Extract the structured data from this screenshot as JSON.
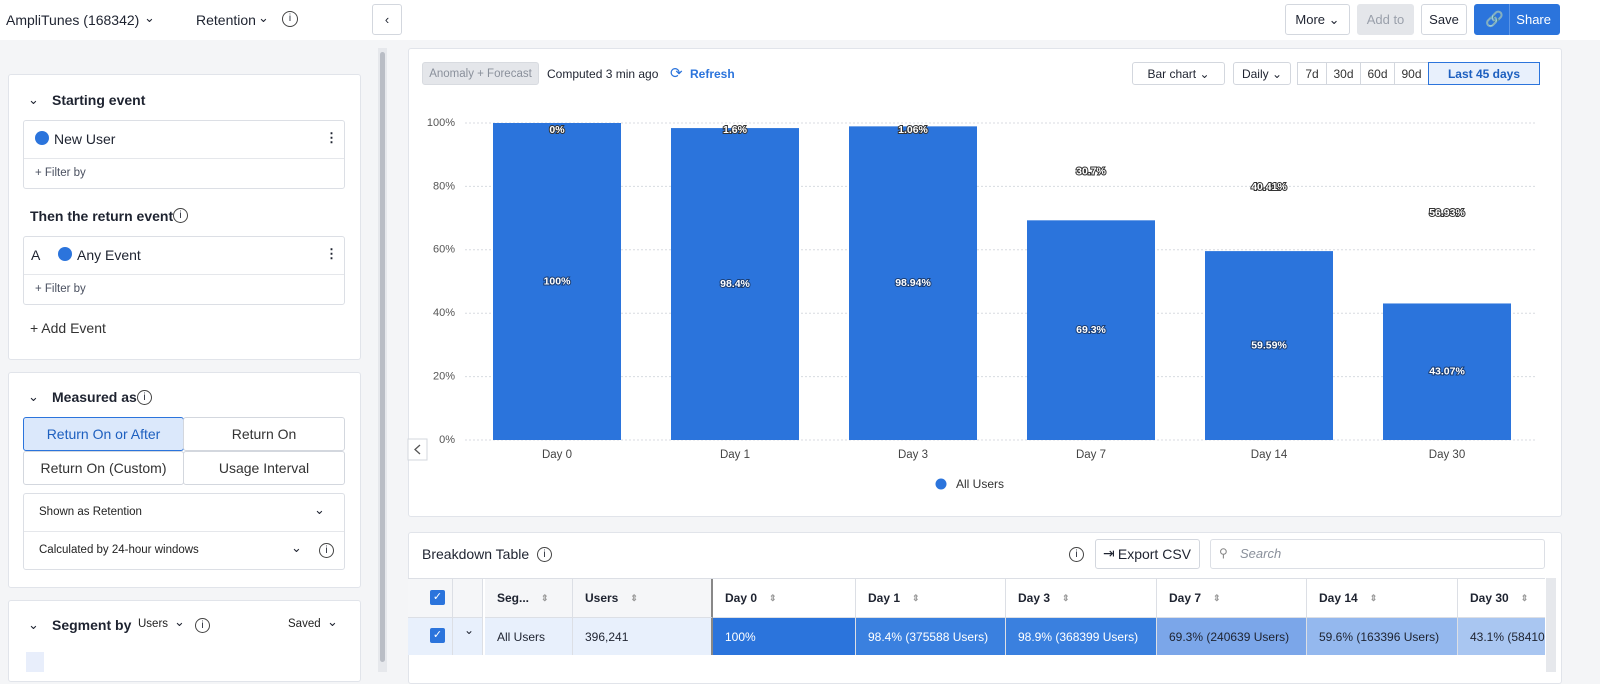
{
  "header": {
    "project": "AmpliTunes (168342)",
    "chart_kind": "Retention",
    "more": "More",
    "add_to": "Add to",
    "save": "Save",
    "share": "Share"
  },
  "sidebar": {
    "starting_event_title": "Starting event",
    "starting_event": "New User",
    "starting_filter": "+ Filter by",
    "return_event_title": "Then the return event",
    "return_letter": "A",
    "return_event": "Any Event",
    "return_filter": "+ Filter by",
    "add_event": "+ Add Event",
    "measured_as_title": "Measured as",
    "measure_options": [
      "Return On or After",
      "Return On",
      "Return On (Custom)",
      "Usage Interval"
    ],
    "shown_as": "Shown as Retention",
    "calculated_by": "Calculated by 24-hour windows",
    "segment_by": "Segment by",
    "segment_target": "Users",
    "saved": "Saved"
  },
  "toolbar": {
    "anomaly": "Anomaly + Forecast",
    "computed": "Computed 3 min ago",
    "refresh": "Refresh",
    "chart_view": "Bar chart",
    "interval": "Daily",
    "ranges": [
      "7d",
      "30d",
      "60d",
      "90d",
      "Last 45 days"
    ]
  },
  "chart_data": {
    "type": "bar",
    "categories": [
      "Day 0",
      "Day 1",
      "Day 3",
      "Day 7",
      "Day 14",
      "Day 30"
    ],
    "series": [
      {
        "name": "All Users",
        "color": "#2b74dc",
        "values": [
          100,
          98.4,
          98.94,
          69.3,
          59.59,
          43.07
        ],
        "value_labels": [
          "100%",
          "98.4%",
          "98.94%",
          "69.3%",
          "59.59%",
          "43.07%"
        ],
        "dropoff_values": [
          0,
          1.6,
          1.06,
          30.7,
          40.41,
          56.93
        ],
        "dropoff_labels": [
          "0%",
          "1.6%",
          "1.06%",
          "30.7%",
          "40.41%",
          "56.93%"
        ]
      }
    ],
    "ylim": [
      0,
      100
    ],
    "yticks": [
      {
        "value": 0,
        "label": "0%"
      },
      {
        "value": 20,
        "label": "20%"
      },
      {
        "value": 40,
        "label": "40%"
      },
      {
        "value": 60,
        "label": "60%"
      },
      {
        "value": 80,
        "label": "80%"
      },
      {
        "value": 100,
        "label": "100%"
      }
    ],
    "grid": true
  },
  "table": {
    "title": "Breakdown Table",
    "export": "Export CSV",
    "search_placeholder": "Search",
    "columns": [
      "Seg...",
      "Users",
      "Day 0",
      "Day 1",
      "Day 3",
      "Day 7",
      "Day 14",
      "Day 30"
    ],
    "rows": [
      [
        "All Users",
        "396,241",
        "100%",
        "98.4% (375588 Users)",
        "98.9% (368399 Users)",
        "69.3% (240639 Users)",
        "59.6% (163396 Users)",
        "43.1% (58410"
      ]
    ]
  }
}
